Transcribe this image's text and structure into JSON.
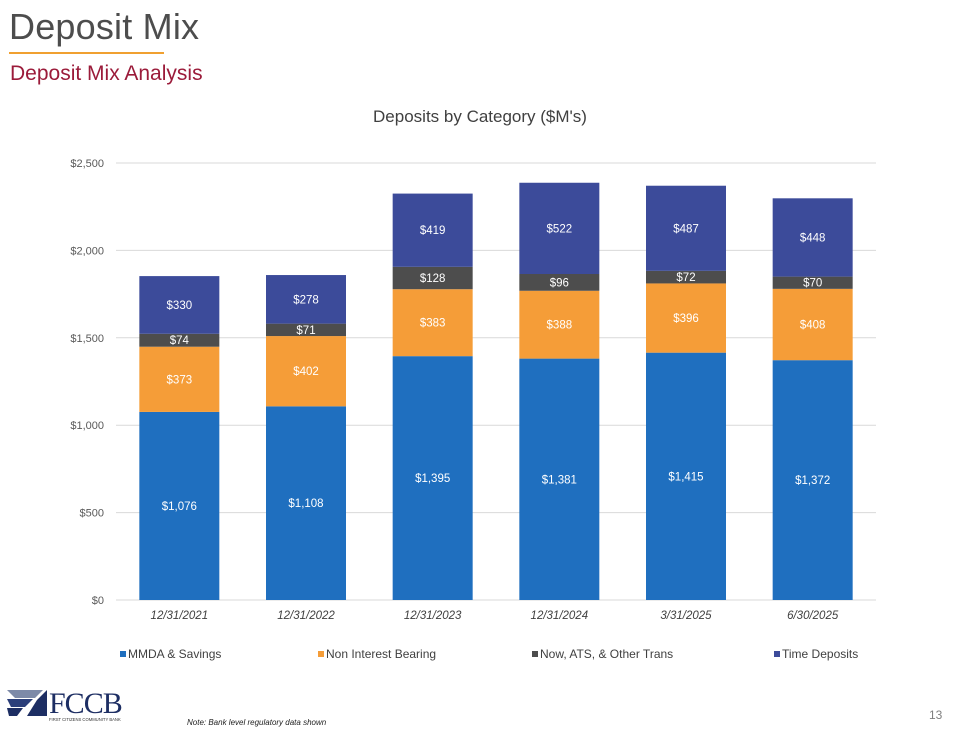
{
  "slide": {
    "title": "Deposit Mix",
    "subtitle": "Deposit Mix Analysis",
    "footnote": "Note: Bank level regulatory data shown",
    "page_number": "13",
    "logo_text": "FCCB",
    "logo_tagline": "FIRST CITIZENS COMMUNITY BANK",
    "accent_color": "#f0a030",
    "subtitle_color": "#9b1b3a"
  },
  "chart_data": {
    "type": "bar",
    "stacked": true,
    "title": "Deposits by Category ($M's)",
    "categories": [
      "12/31/2021",
      "12/31/2022",
      "12/31/2023",
      "12/31/2024",
      "3/31/2025",
      "6/30/2025"
    ],
    "series": [
      {
        "name": "MMDA & Savings",
        "color": "#1f6fbf",
        "values": [
          1076,
          1108,
          1395,
          1381,
          1415,
          1372
        ],
        "labels": [
          "$1,076",
          "$1,108",
          "$1,395",
          "$1,381",
          "$1,415",
          "$1,372"
        ]
      },
      {
        "name": "Non Interest Bearing",
        "color": "#f59d38",
        "values": [
          373,
          402,
          383,
          388,
          396,
          408
        ],
        "labels": [
          "$373",
          "$402",
          "$383",
          "$388",
          "$396",
          "$408"
        ]
      },
      {
        "name": "Now, ATS, & Other Trans",
        "color": "#4d4d4d",
        "values": [
          74,
          71,
          128,
          96,
          72,
          70
        ],
        "labels": [
          "$74",
          "$71",
          "$128",
          "$96",
          "$72",
          "$70"
        ]
      },
      {
        "name": "Time Deposits",
        "color": "#3c4b9a",
        "values": [
          330,
          278,
          419,
          522,
          487,
          448
        ],
        "labels": [
          "$330",
          "$278",
          "$419",
          "$522",
          "$487",
          "$448"
        ]
      }
    ],
    "ylim": [
      0,
      2500
    ],
    "yticks": [
      0,
      500,
      1000,
      1500,
      2000,
      2500
    ],
    "ytick_labels": [
      "$0",
      "$500",
      "$1,000",
      "$1,500",
      "$2,000",
      "$2,500"
    ],
    "grid": true,
    "legend_position": "bottom"
  }
}
